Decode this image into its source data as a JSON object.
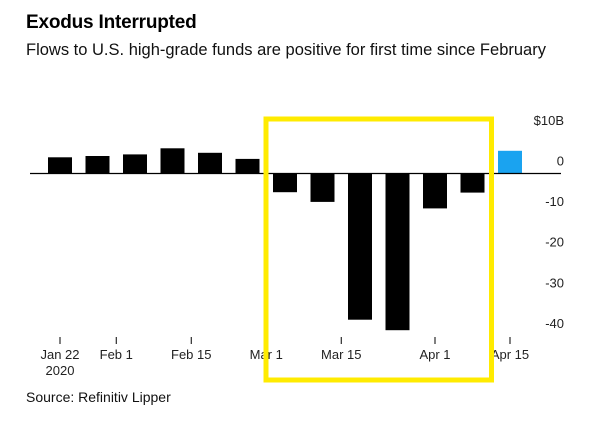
{
  "title": "Exodus Interrupted",
  "subtitle": "Flows to U.S. high-grade funds are positive for first time since February",
  "source": "Source: Refinitiv Lipper",
  "colors": {
    "bars": "#000000",
    "latest_bar": "#1AA3F0",
    "highlight_box": "#FFEB00",
    "axis": "#000000",
    "tick_text": "#222222"
  },
  "chart_data": {
    "type": "bar",
    "title": "Exodus Interrupted",
    "subtitle": "Flows to U.S. high-grade funds are positive for first time since February",
    "x_tick_labels": [
      {
        "label": "Jan 22",
        "label2": "2020",
        "bar_index": 0
      },
      {
        "label": "Feb 1",
        "bar_index": 1.5
      },
      {
        "label": "Feb 15",
        "bar_index": 3.5
      },
      {
        "label": "Mar 1",
        "bar_index": 5.5
      },
      {
        "label": "Mar 15",
        "bar_index": 7.5
      },
      {
        "label": "Apr 1",
        "bar_index": 10
      },
      {
        "label": "Apr 15",
        "bar_index": 12
      }
    ],
    "y_ticks": [
      {
        "value": 10,
        "label": "$10B"
      },
      {
        "value": 0,
        "label": "0"
      },
      {
        "value": -10,
        "label": "-10"
      },
      {
        "value": -20,
        "label": "-20"
      },
      {
        "value": -30,
        "label": "-30"
      },
      {
        "value": -40,
        "label": "-40"
      }
    ],
    "ylim": [
      -42,
      12
    ],
    "values": [
      4,
      4.3,
      4.7,
      6.2,
      5.1,
      3.6,
      -4.6,
      -7,
      -36,
      -38.6,
      -8.6,
      -4.7,
      5.6
    ],
    "highlighted_bar_index": 12,
    "highlight_box_bar_range": [
      6,
      11
    ],
    "grid": false,
    "legend": "none"
  }
}
